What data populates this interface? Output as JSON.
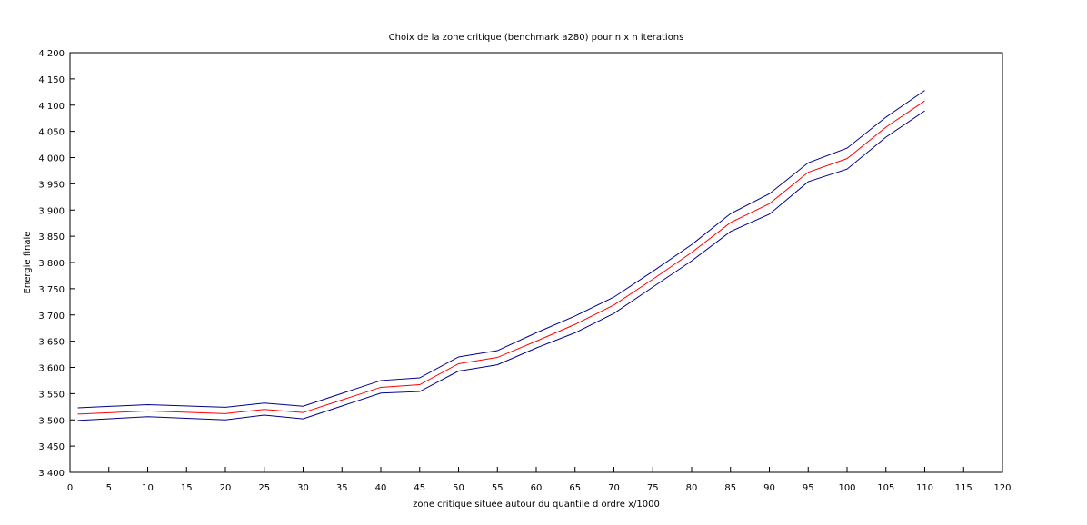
{
  "chart_data": {
    "type": "line",
    "title": "Choix de la zone critique (benchmark a280) pour n x n iterations",
    "xlabel": "zone critique située autour du quantile d ordre x/1000",
    "ylabel": "Energie finale",
    "xlim": [
      0,
      120
    ],
    "ylim": [
      3400,
      4200
    ],
    "xticks": [
      0,
      5,
      10,
      15,
      20,
      25,
      30,
      35,
      40,
      45,
      50,
      55,
      60,
      65,
      70,
      75,
      80,
      85,
      90,
      95,
      100,
      105,
      110,
      115,
      120
    ],
    "xtick_labels": [
      "0",
      "5",
      "10",
      "15",
      "20",
      "25",
      "30",
      "35",
      "40",
      "45",
      "50",
      "55",
      "60",
      "65",
      "70",
      "75",
      "80",
      "85",
      "90",
      "95",
      "100",
      "105",
      "110",
      "115",
      "120"
    ],
    "yticks": [
      3400,
      3450,
      3500,
      3550,
      3600,
      3650,
      3700,
      3750,
      3800,
      3850,
      3900,
      3950,
      4000,
      4050,
      4100,
      4150,
      4200
    ],
    "ytick_labels": [
      "3 400",
      "3 450",
      "3 500",
      "3 550",
      "3 600",
      "3 650",
      "3 700",
      "3 750",
      "3 800",
      "3 850",
      "3 900",
      "3 950",
      "4 000",
      "4 050",
      "4 100",
      "4 150",
      "4 200"
    ],
    "grid": false,
    "x": [
      1,
      10,
      20,
      25,
      30,
      40,
      45,
      50,
      55,
      60,
      65,
      70,
      75,
      80,
      85,
      90,
      95,
      100,
      105,
      110
    ],
    "series": [
      {
        "color": "#00008b",
        "values": [
          3523,
          3529,
          3524,
          3532,
          3526,
          3575,
          3580,
          3620,
          3632,
          3666,
          3698,
          3734,
          3783,
          3834,
          3893,
          3931,
          3990,
          4018,
          4077,
          4128
        ]
      },
      {
        "color": "#ff0000",
        "values": [
          3511,
          3517,
          3512,
          3520,
          3514,
          3562,
          3567,
          3607,
          3619,
          3650,
          3682,
          3719,
          3768,
          3819,
          3876,
          3912,
          3972,
          3998,
          4058,
          4108
        ]
      },
      {
        "color": "#00008b",
        "values": [
          3499,
          3506,
          3500,
          3509,
          3502,
          3551,
          3554,
          3593,
          3605,
          3637,
          3666,
          3703,
          3753,
          3803,
          3859,
          3892,
          3954,
          3978,
          4039,
          4089
        ]
      }
    ]
  }
}
